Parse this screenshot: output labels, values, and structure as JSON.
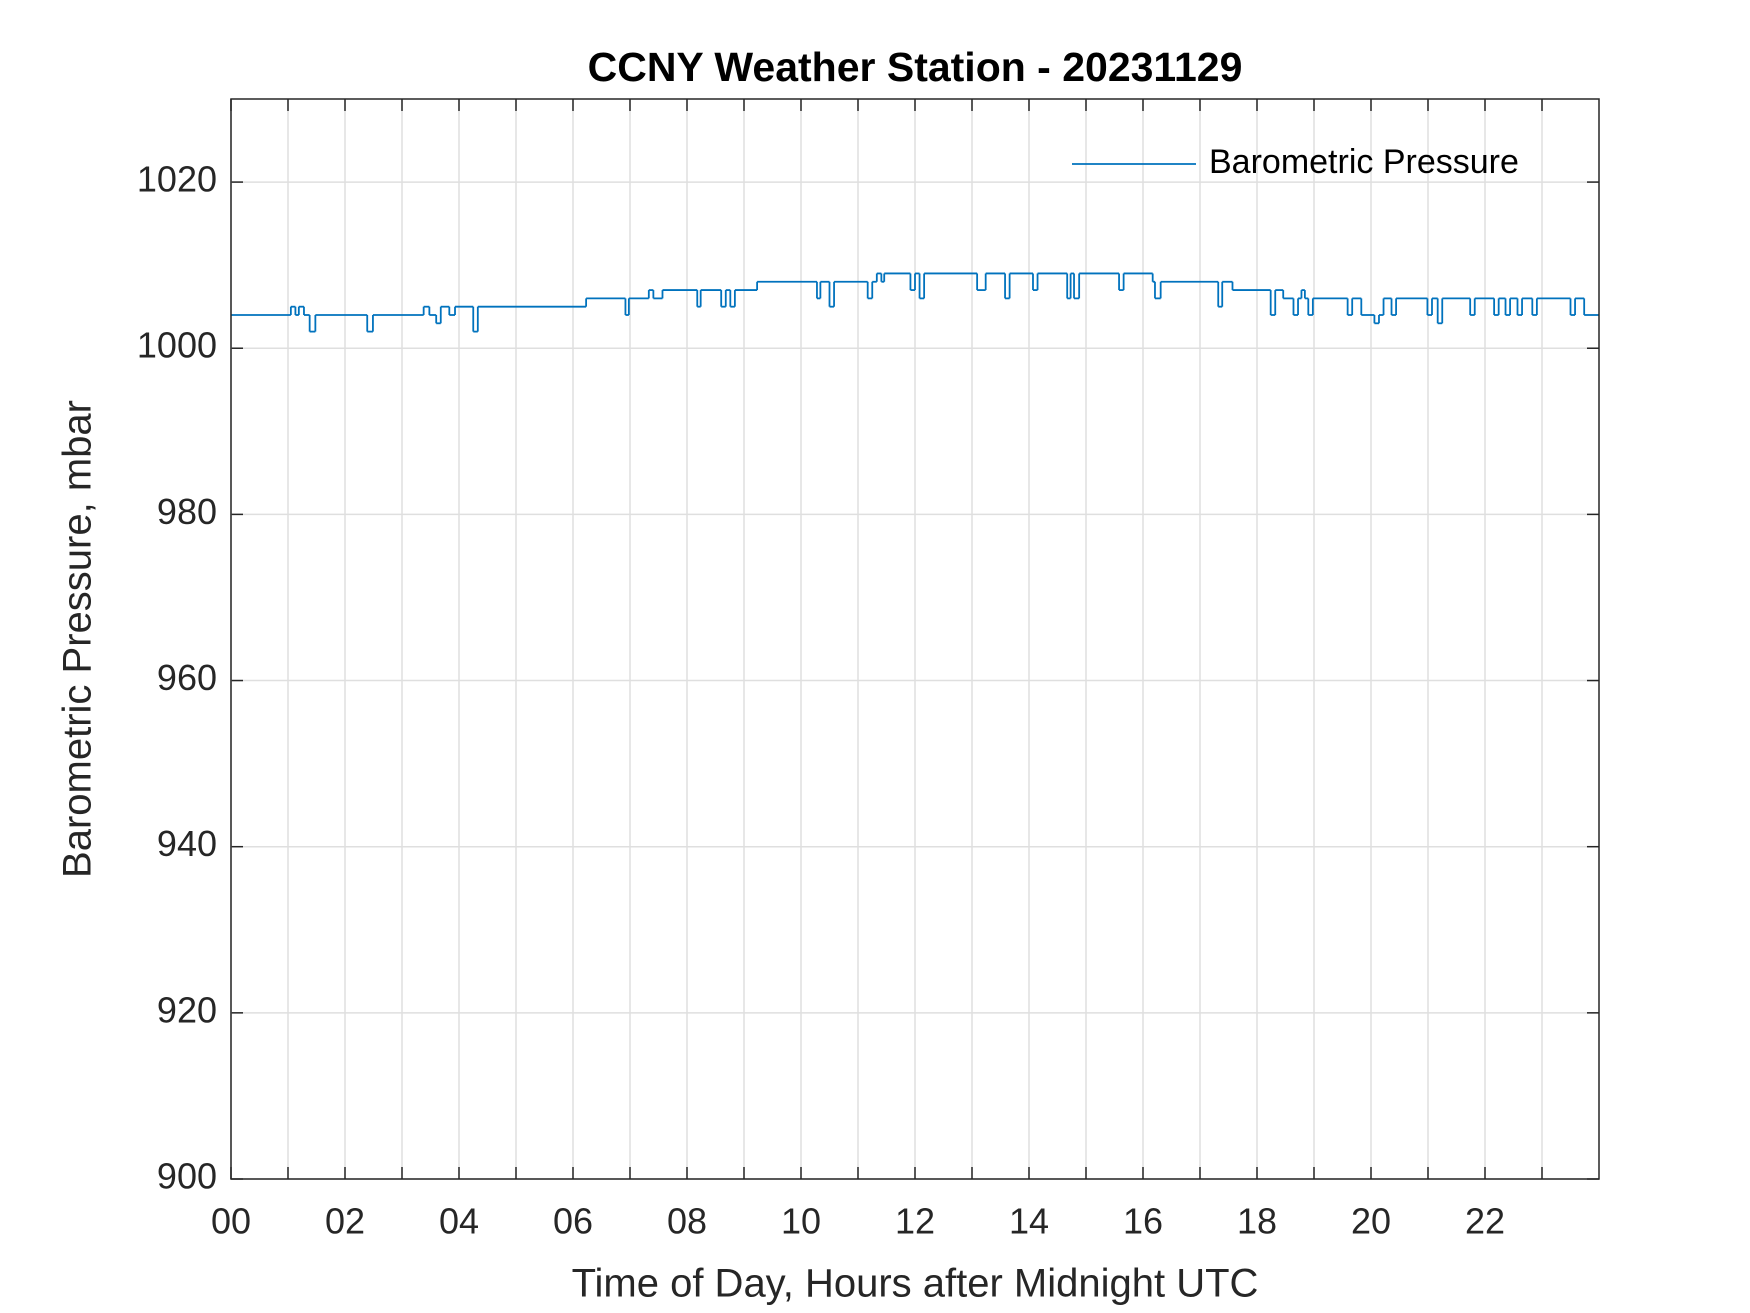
{
  "chart_data": {
    "type": "line",
    "step": "post",
    "title": "CCNY Weather Station - 20231129",
    "xlabel": "Time of Day, Hours after Midnight UTC",
    "ylabel": "Barometric Pressure, mbar",
    "xlim": [
      0,
      24
    ],
    "ylim": [
      900,
      1030
    ],
    "xticks": [
      {
        "value": 0,
        "label": "00"
      },
      {
        "value": 2,
        "label": "02"
      },
      {
        "value": 4,
        "label": "04"
      },
      {
        "value": 6,
        "label": "06"
      },
      {
        "value": 8,
        "label": "08"
      },
      {
        "value": 10,
        "label": "10"
      },
      {
        "value": 12,
        "label": "12"
      },
      {
        "value": 14,
        "label": "14"
      },
      {
        "value": 16,
        "label": "16"
      },
      {
        "value": 18,
        "label": "18"
      },
      {
        "value": 20,
        "label": "20"
      },
      {
        "value": 22,
        "label": "22"
      }
    ],
    "xminorticks": [
      1,
      3,
      5,
      7,
      9,
      11,
      13,
      15,
      17,
      19,
      21,
      23
    ],
    "yticks": [
      900,
      920,
      940,
      960,
      980,
      1000,
      1020
    ],
    "grid": true,
    "legend": "northeast",
    "series": [
      {
        "name": "Barometric Pressure",
        "color": "#0072bd",
        "x": [
          0,
          1.05,
          1.13,
          1.19,
          1.28,
          1.38,
          1.48,
          2.39,
          2.49,
          3.38,
          3.48,
          3.6,
          3.68,
          3.83,
          3.93,
          4.25,
          4.33,
          6.23,
          6.92,
          6.98,
          7.33,
          7.41,
          7.57,
          8.18,
          8.24,
          8.6,
          8.68,
          8.76,
          8.84,
          9.23,
          10.28,
          10.34,
          10.5,
          10.58,
          11.17,
          11.25,
          11.33,
          11.41,
          11.46,
          11.92,
          12.0,
          12.08,
          12.16,
          13.09,
          13.24,
          13.58,
          13.66,
          14.07,
          14.15,
          14.67,
          14.73,
          14.79,
          14.88,
          15.58,
          15.66,
          16.17,
          16.21,
          16.31,
          17.32,
          17.39,
          17.57,
          18.24,
          18.32,
          18.46,
          18.64,
          18.72,
          18.78,
          18.84,
          18.9,
          18.98,
          19.59,
          19.67,
          19.83,
          20.06,
          20.14,
          20.22,
          20.36,
          20.44,
          20.99,
          21.07,
          21.17,
          21.25,
          21.74,
          21.82,
          22.16,
          22.24,
          22.36,
          22.44,
          22.57,
          22.65,
          22.83,
          22.91,
          23.5,
          23.58,
          23.74
        ],
        "values": [
          1004,
          1005,
          1004,
          1005,
          1004,
          1002,
          1004,
          1002,
          1004,
          1005,
          1004,
          1003,
          1005,
          1004,
          1005,
          1002,
          1005,
          1006,
          1004,
          1006,
          1007,
          1006,
          1007,
          1005,
          1007,
          1005,
          1007,
          1005,
          1007,
          1008,
          1006,
          1008,
          1005,
          1008,
          1006,
          1008,
          1009,
          1008,
          1009,
          1007,
          1009,
          1006,
          1009,
          1007,
          1009,
          1006,
          1009,
          1007,
          1009,
          1006,
          1009,
          1006,
          1009,
          1007,
          1009,
          1008,
          1006,
          1008,
          1005,
          1008,
          1007,
          1004,
          1007,
          1006,
          1004,
          1006,
          1007,
          1006,
          1004,
          1006,
          1004,
          1006,
          1004,
          1003,
          1004,
          1006,
          1004,
          1006,
          1004,
          1006,
          1003,
          1006,
          1004,
          1006,
          1004,
          1006,
          1004,
          1006,
          1004,
          1006,
          1004,
          1006,
          1004,
          1006,
          1004
        ]
      }
    ]
  }
}
